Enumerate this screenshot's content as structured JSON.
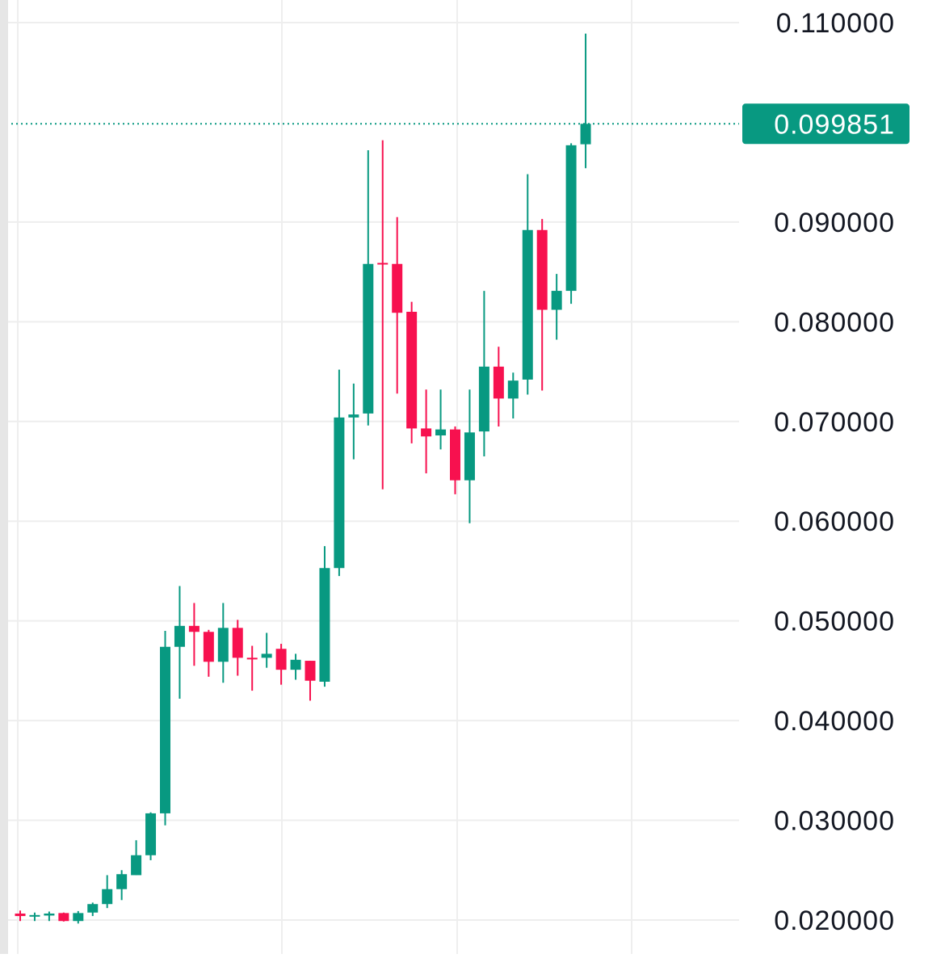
{
  "chart_data": {
    "type": "candlestick",
    "title": "",
    "xlabel": "",
    "ylabel": "",
    "ylim": [
      0.0185,
      0.1135
    ],
    "y_ticks": [
      "0.110000",
      "0.090000",
      "0.080000",
      "0.070000",
      "0.060000",
      "0.050000",
      "0.040000",
      "0.030000",
      "0.020000"
    ],
    "grid": true,
    "last_price": {
      "label": "0.099851",
      "value": 0.099851
    },
    "colors": {
      "up": "#089981",
      "down": "#f7114f",
      "grid": "#eeeeee",
      "label_text": "#131722",
      "price_label_text": "#ffffff",
      "left_edge": "#e6e6e6"
    },
    "candles": [
      {
        "open": 0.02065,
        "high": 0.02095,
        "low": 0.0199,
        "close": 0.0204
      },
      {
        "open": 0.02045,
        "high": 0.02075,
        "low": 0.0199,
        "close": 0.0205
      },
      {
        "open": 0.02045,
        "high": 0.02085,
        "low": 0.0199,
        "close": 0.02065
      },
      {
        "open": 0.0207,
        "high": 0.02075,
        "low": 0.01985,
        "close": 0.0199
      },
      {
        "open": 0.0199,
        "high": 0.0209,
        "low": 0.01965,
        "close": 0.0207
      },
      {
        "open": 0.02075,
        "high": 0.02175,
        "low": 0.0204,
        "close": 0.0216
      },
      {
        "open": 0.0216,
        "high": 0.0245,
        "low": 0.0212,
        "close": 0.0231
      },
      {
        "open": 0.0231,
        "high": 0.025,
        "low": 0.022,
        "close": 0.0246
      },
      {
        "open": 0.0245,
        "high": 0.028,
        "low": 0.0245,
        "close": 0.0265
      },
      {
        "open": 0.0265,
        "high": 0.0308,
        "low": 0.026,
        "close": 0.0307
      },
      {
        "open": 0.0307,
        "high": 0.049,
        "low": 0.0295,
        "close": 0.0474
      },
      {
        "open": 0.0474,
        "high": 0.0535,
        "low": 0.0422,
        "close": 0.0495
      },
      {
        "open": 0.0495,
        "high": 0.0518,
        "low": 0.0455,
        "close": 0.0489
      },
      {
        "open": 0.0489,
        "high": 0.0491,
        "low": 0.0444,
        "close": 0.0459
      },
      {
        "open": 0.0459,
        "high": 0.0518,
        "low": 0.0438,
        "close": 0.0493
      },
      {
        "open": 0.0493,
        "high": 0.0501,
        "low": 0.0445,
        "close": 0.0463
      },
      {
        "open": 0.0463,
        "high": 0.0475,
        "low": 0.043,
        "close": 0.0462
      },
      {
        "open": 0.0463,
        "high": 0.0488,
        "low": 0.0453,
        "close": 0.0467
      },
      {
        "open": 0.0472,
        "high": 0.0477,
        "low": 0.0436,
        "close": 0.0451
      },
      {
        "open": 0.0451,
        "high": 0.0467,
        "low": 0.0441,
        "close": 0.0461
      },
      {
        "open": 0.046,
        "high": 0.046,
        "low": 0.042,
        "close": 0.044
      },
      {
        "open": 0.0439,
        "high": 0.0575,
        "low": 0.0434,
        "close": 0.0553
      },
      {
        "open": 0.0553,
        "high": 0.0752,
        "low": 0.0545,
        "close": 0.0704
      },
      {
        "open": 0.0704,
        "high": 0.0738,
        "low": 0.0662,
        "close": 0.0707
      },
      {
        "open": 0.0708,
        "high": 0.0972,
        "low": 0.0696,
        "close": 0.0858
      },
      {
        "open": 0.0859,
        "high": 0.0982,
        "low": 0.0632,
        "close": 0.0858
      },
      {
        "open": 0.0858,
        "high": 0.0905,
        "low": 0.0728,
        "close": 0.0809
      },
      {
        "open": 0.081,
        "high": 0.082,
        "low": 0.0678,
        "close": 0.0693
      },
      {
        "open": 0.0693,
        "high": 0.0732,
        "low": 0.0648,
        "close": 0.0685
      },
      {
        "open": 0.0686,
        "high": 0.0732,
        "low": 0.0672,
        "close": 0.0692
      },
      {
        "open": 0.0692,
        "high": 0.0695,
        "low": 0.0627,
        "close": 0.0641
      },
      {
        "open": 0.0641,
        "high": 0.0732,
        "low": 0.0598,
        "close": 0.0689
      },
      {
        "open": 0.069,
        "high": 0.0831,
        "low": 0.0665,
        "close": 0.0755
      },
      {
        "open": 0.0755,
        "high": 0.0775,
        "low": 0.0695,
        "close": 0.0723
      },
      {
        "open": 0.0723,
        "high": 0.0749,
        "low": 0.0703,
        "close": 0.0741
      },
      {
        "open": 0.0742,
        "high": 0.0948,
        "low": 0.0727,
        "close": 0.0892
      },
      {
        "open": 0.0892,
        "high": 0.0903,
        "low": 0.0731,
        "close": 0.0812
      },
      {
        "open": 0.0812,
        "high": 0.0848,
        "low": 0.0782,
        "close": 0.0831
      },
      {
        "open": 0.0831,
        "high": 0.0979,
        "low": 0.0818,
        "close": 0.0977
      },
      {
        "open": 0.0978,
        "high": 0.1089,
        "low": 0.0954,
        "close": 0.099851
      }
    ]
  }
}
